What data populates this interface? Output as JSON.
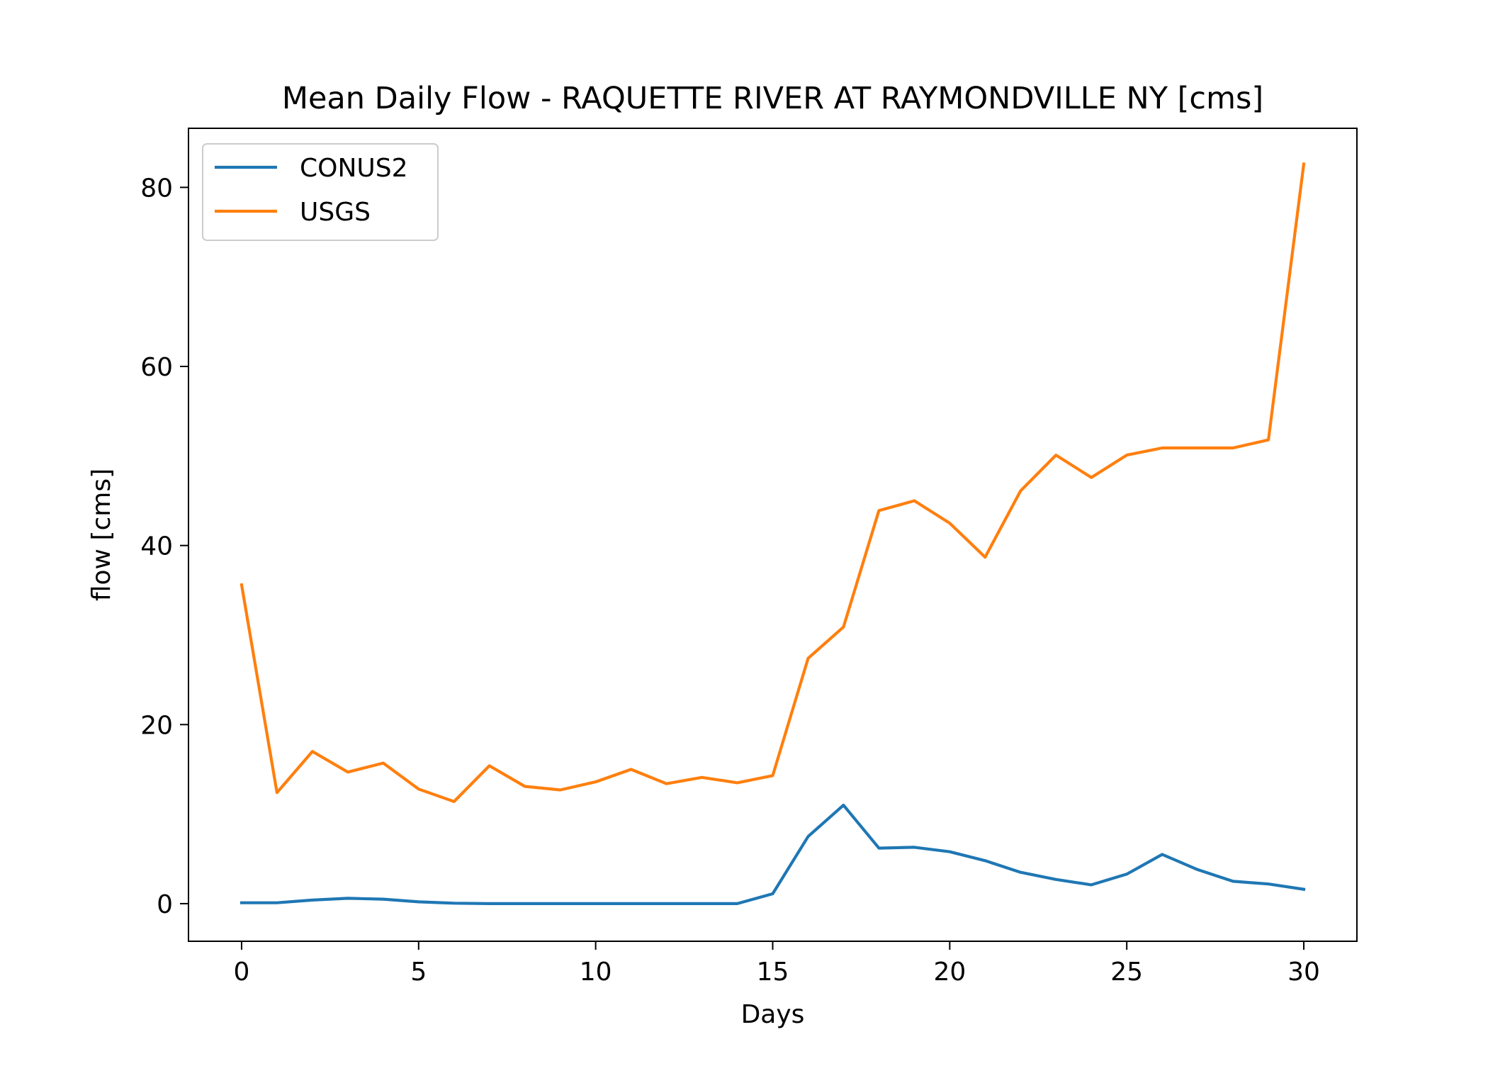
{
  "chart_data": {
    "type": "line",
    "title": "Mean Daily Flow - RAQUETTE RIVER AT RAYMONDVILLE NY [cms]",
    "xlabel": "Days",
    "ylabel": "flow [cms]",
    "xlim": [
      -1.5,
      31.5
    ],
    "ylim": [
      -4.2,
      86.6
    ],
    "xticks": [
      0,
      5,
      10,
      15,
      20,
      25,
      30
    ],
    "yticks": [
      0,
      20,
      40,
      60,
      80
    ],
    "grid": false,
    "legend_position": "top-left",
    "x": [
      0,
      1,
      2,
      3,
      4,
      5,
      6,
      7,
      8,
      9,
      10,
      11,
      12,
      13,
      14,
      15,
      16,
      17,
      18,
      19,
      20,
      21,
      22,
      23,
      24,
      25,
      26,
      27,
      28,
      29,
      30
    ],
    "series": [
      {
        "name": "CONUS2",
        "color": "#1f77b4",
        "values": [
          0.1,
          0.1,
          0.4,
          0.6,
          0.5,
          0.2,
          0.05,
          0.0,
          0.0,
          0.0,
          0.0,
          0.0,
          0.0,
          0.0,
          0.0,
          1.1,
          7.5,
          11.0,
          6.2,
          6.3,
          5.8,
          4.8,
          3.5,
          2.7,
          2.1,
          3.3,
          5.5,
          3.8,
          2.5,
          2.2,
          1.6
        ]
      },
      {
        "name": "USGS",
        "color": "#ff7f0e",
        "values": [
          35.6,
          12.4,
          17.0,
          14.7,
          15.7,
          12.8,
          11.4,
          15.4,
          13.1,
          12.7,
          13.6,
          15.0,
          13.4,
          14.1,
          13.5,
          14.3,
          27.4,
          30.9,
          43.9,
          45.0,
          42.5,
          38.7,
          46.1,
          50.1,
          47.6,
          50.1,
          50.9,
          50.9,
          50.9,
          51.8,
          82.6
        ]
      }
    ]
  }
}
